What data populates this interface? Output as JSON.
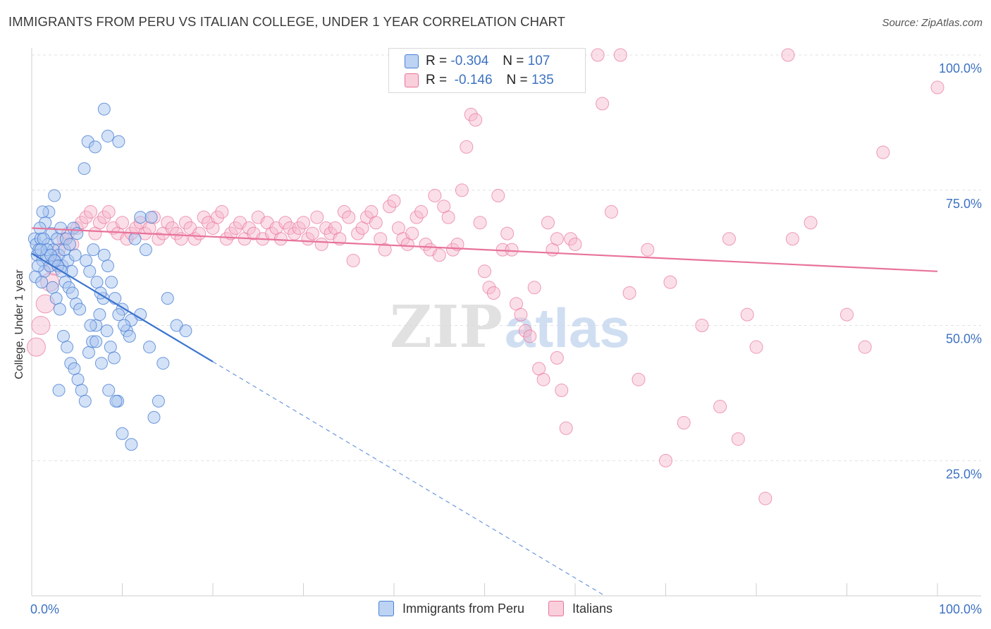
{
  "title": "IMMIGRANTS FROM PERU VS ITALIAN COLLEGE, UNDER 1 YEAR CORRELATION CHART",
  "source": "Source: ZipAtlas.com",
  "watermark": "ZIPatlas",
  "colors": {
    "blue": "#4a7fd4",
    "blue_fill": "#a9c6ef",
    "pink": "#e8739a",
    "pink_fill": "#f6b8cc",
    "tick_label": "#3d72c2"
  },
  "legend": {
    "rows": [
      {
        "r_label": "R =",
        "r_value": "-0.304",
        "n_label": "N =",
        "n_value": "107"
      },
      {
        "r_label": "R =",
        "r_value": "-0.146",
        "n_label": "N =",
        "n_value": "135"
      }
    ]
  },
  "bottom_legend": [
    "Immigrants from Peru",
    "Italians"
  ],
  "chart_data": {
    "type": "scatter",
    "title": "IMMIGRANTS FROM PERU VS ITALIAN COLLEGE, UNDER 1 YEAR CORRELATION CHART",
    "xlabel": "",
    "ylabel": "College, Under 1 year",
    "xlim": [
      0,
      100
    ],
    "ylim": [
      0,
      100
    ],
    "x_tick_labels": [
      "0.0%",
      "100.0%"
    ],
    "y_tick_labels": [
      "100.0%",
      "75.0%",
      "50.0%",
      "25.0%"
    ],
    "y_ticks": [
      100,
      75,
      50,
      25
    ],
    "grid": true,
    "legend_position": "top-center",
    "series": [
      {
        "name": "Immigrants from Peru",
        "R": -0.304,
        "N": 107,
        "trend": {
          "x": [
            0,
            20
          ],
          "y": [
            63.3,
            43.3
          ],
          "dashed_x": [
            20,
            63.3
          ],
          "dashed_y": [
            43.3,
            0
          ]
        },
        "points": [
          [
            0.3,
            66
          ],
          [
            0.5,
            65
          ],
          [
            0.6,
            63
          ],
          [
            0.8,
            64
          ],
          [
            1.0,
            66
          ],
          [
            1.2,
            62
          ],
          [
            1.4,
            60
          ],
          [
            1.6,
            63
          ],
          [
            1.8,
            65
          ],
          [
            2.0,
            61
          ],
          [
            2.2,
            67
          ],
          [
            2.4,
            64
          ],
          [
            2.6,
            62
          ],
          [
            2.8,
            66
          ],
          [
            3.0,
            63
          ],
          [
            3.2,
            68
          ],
          [
            3.4,
            61
          ],
          [
            3.6,
            64
          ],
          [
            3.8,
            66
          ],
          [
            4.0,
            62
          ],
          [
            4.2,
            65
          ],
          [
            4.4,
            60
          ],
          [
            4.6,
            68
          ],
          [
            4.8,
            63
          ],
          [
            5.0,
            67
          ],
          [
            0.4,
            59
          ],
          [
            0.7,
            61
          ],
          [
            1.1,
            58
          ],
          [
            1.5,
            69
          ],
          [
            1.9,
            71
          ],
          [
            2.3,
            57
          ],
          [
            2.7,
            55
          ],
          [
            3.1,
            53
          ],
          [
            3.5,
            48
          ],
          [
            3.9,
            46
          ],
          [
            4.3,
            43
          ],
          [
            4.7,
            42
          ],
          [
            5.1,
            40
          ],
          [
            5.5,
            38
          ],
          [
            5.9,
            36
          ],
          [
            6.3,
            45
          ],
          [
            6.7,
            47
          ],
          [
            7.1,
            50
          ],
          [
            7.5,
            52
          ],
          [
            7.9,
            55
          ],
          [
            8.3,
            49
          ],
          [
            8.7,
            46
          ],
          [
            9.1,
            44
          ],
          [
            9.5,
            36
          ],
          [
            10.0,
            53
          ],
          [
            10.5,
            49
          ],
          [
            11.0,
            51
          ],
          [
            12.0,
            52
          ],
          [
            13.0,
            46
          ],
          [
            14.0,
            36
          ],
          [
            15.0,
            55
          ],
          [
            16.0,
            50
          ],
          [
            17.0,
            49
          ],
          [
            6.0,
            62
          ],
          [
            6.4,
            60
          ],
          [
            6.8,
            64
          ],
          [
            7.2,
            58
          ],
          [
            7.6,
            56
          ],
          [
            8.0,
            63
          ],
          [
            8.4,
            61
          ],
          [
            8.8,
            58
          ],
          [
            9.2,
            55
          ],
          [
            9.6,
            52
          ],
          [
            10.2,
            50
          ],
          [
            10.8,
            48
          ],
          [
            11.4,
            66
          ],
          [
            12.0,
            70
          ],
          [
            12.6,
            64
          ],
          [
            13.2,
            70
          ],
          [
            5.8,
            79
          ],
          [
            6.2,
            84
          ],
          [
            7.0,
            83
          ],
          [
            8.0,
            90
          ],
          [
            8.4,
            85
          ],
          [
            9.6,
            84
          ],
          [
            2.5,
            74
          ],
          [
            1.2,
            71
          ],
          [
            0.9,
            68
          ],
          [
            1.3,
            66
          ],
          [
            1.7,
            64
          ],
          [
            2.1,
            63
          ],
          [
            2.5,
            62
          ],
          [
            2.9,
            61
          ],
          [
            3.3,
            60
          ],
          [
            3.7,
            58
          ],
          [
            4.1,
            57
          ],
          [
            4.5,
            56
          ],
          [
            4.9,
            54
          ],
          [
            5.3,
            53
          ],
          [
            6.5,
            50
          ],
          [
            7.1,
            47
          ],
          [
            7.7,
            43
          ],
          [
            8.5,
            38
          ],
          [
            9.3,
            36
          ],
          [
            10.0,
            30
          ],
          [
            11.0,
            28
          ],
          [
            13.5,
            33
          ],
          [
            14.5,
            43
          ],
          [
            3.0,
            38
          ],
          [
            1.0,
            64
          ]
        ]
      },
      {
        "name": "Italians",
        "R": -0.146,
        "N": 135,
        "trend": {
          "x": [
            0,
            100
          ],
          "y": [
            68,
            60
          ]
        },
        "points": [
          [
            0.5,
            46
          ],
          [
            1.0,
            50
          ],
          [
            1.5,
            54
          ],
          [
            2.0,
            58
          ],
          [
            2.5,
            61
          ],
          [
            3.0,
            64
          ],
          [
            3.5,
            66
          ],
          [
            4.0,
            67
          ],
          [
            4.5,
            65
          ],
          [
            5.0,
            68
          ],
          [
            5.5,
            69
          ],
          [
            6.0,
            70
          ],
          [
            6.5,
            71
          ],
          [
            7.0,
            67
          ],
          [
            7.5,
            69
          ],
          [
            8.0,
            70
          ],
          [
            8.5,
            71
          ],
          [
            9.0,
            68
          ],
          [
            9.5,
            67
          ],
          [
            10.0,
            69
          ],
          [
            10.5,
            66
          ],
          [
            11.0,
            67
          ],
          [
            11.5,
            68
          ],
          [
            12.0,
            69
          ],
          [
            12.5,
            67
          ],
          [
            13.0,
            68
          ],
          [
            13.5,
            70
          ],
          [
            14.0,
            66
          ],
          [
            14.5,
            67
          ],
          [
            15.0,
            69
          ],
          [
            15.5,
            68
          ],
          [
            16.0,
            67
          ],
          [
            16.5,
            66
          ],
          [
            17.0,
            69
          ],
          [
            17.5,
            68
          ],
          [
            18.0,
            66
          ],
          [
            18.5,
            67
          ],
          [
            19.0,
            70
          ],
          [
            19.5,
            69
          ],
          [
            20.0,
            68
          ],
          [
            20.5,
            70
          ],
          [
            21.0,
            71
          ],
          [
            21.5,
            66
          ],
          [
            22.0,
            67
          ],
          [
            22.5,
            68
          ],
          [
            23.0,
            69
          ],
          [
            23.5,
            66
          ],
          [
            24.0,
            68
          ],
          [
            24.5,
            67
          ],
          [
            25.0,
            70
          ],
          [
            25.5,
            66
          ],
          [
            26.0,
            69
          ],
          [
            26.5,
            67
          ],
          [
            27.0,
            68
          ],
          [
            27.5,
            66
          ],
          [
            28.0,
            69
          ],
          [
            28.5,
            68
          ],
          [
            29.0,
            67
          ],
          [
            29.5,
            68
          ],
          [
            30.0,
            69
          ],
          [
            30.5,
            66
          ],
          [
            31.0,
            67
          ],
          [
            31.5,
            70
          ],
          [
            32.0,
            65
          ],
          [
            32.5,
            68
          ],
          [
            33.0,
            67
          ],
          [
            33.5,
            68
          ],
          [
            34.0,
            66
          ],
          [
            34.5,
            71
          ],
          [
            35.0,
            70
          ],
          [
            35.5,
            62
          ],
          [
            36.0,
            67
          ],
          [
            36.5,
            68
          ],
          [
            37.0,
            70
          ],
          [
            37.5,
            71
          ],
          [
            38.0,
            69
          ],
          [
            38.5,
            66
          ],
          [
            39.0,
            64
          ],
          [
            39.5,
            72
          ],
          [
            40.0,
            73
          ],
          [
            40.5,
            68
          ],
          [
            41.0,
            66
          ],
          [
            41.5,
            65
          ],
          [
            42.0,
            67
          ],
          [
            42.5,
            70
          ],
          [
            43.0,
            71
          ],
          [
            43.5,
            65
          ],
          [
            44.0,
            64
          ],
          [
            44.5,
            74
          ],
          [
            45.0,
            63
          ],
          [
            45.5,
            72
          ],
          [
            46.0,
            70
          ],
          [
            46.5,
            64
          ],
          [
            47.0,
            65
          ],
          [
            47.5,
            75
          ],
          [
            48.0,
            83
          ],
          [
            48.5,
            89
          ],
          [
            49.0,
            88
          ],
          [
            49.5,
            69
          ],
          [
            50.0,
            60
          ],
          [
            50.5,
            57
          ],
          [
            51.0,
            56
          ],
          [
            51.5,
            74
          ],
          [
            52.0,
            64
          ],
          [
            52.5,
            67
          ],
          [
            53.0,
            64
          ],
          [
            53.5,
            54
          ],
          [
            54.0,
            52
          ],
          [
            54.5,
            49
          ],
          [
            55.0,
            48
          ],
          [
            55.5,
            57
          ],
          [
            56.0,
            42
          ],
          [
            56.5,
            40
          ],
          [
            57.0,
            69
          ],
          [
            57.5,
            64
          ],
          [
            58.0,
            44
          ],
          [
            58.5,
            38
          ],
          [
            59.0,
            31
          ],
          [
            59.5,
            66
          ],
          [
            60.0,
            100
          ],
          [
            62.5,
            100
          ],
          [
            63.0,
            91
          ],
          [
            64.0,
            71
          ],
          [
            65.0,
            100
          ],
          [
            66.0,
            56
          ],
          [
            67.0,
            40
          ],
          [
            68.0,
            64
          ],
          [
            70.0,
            25
          ],
          [
            70.5,
            58
          ],
          [
            72.0,
            32
          ],
          [
            74.0,
            50
          ],
          [
            76.0,
            35
          ],
          [
            77.0,
            66
          ],
          [
            78.0,
            29
          ],
          [
            79.0,
            52
          ],
          [
            80.0,
            46
          ],
          [
            81.0,
            18
          ],
          [
            83.5,
            100
          ],
          [
            84.0,
            66
          ],
          [
            86.0,
            69
          ],
          [
            90.0,
            52
          ],
          [
            92.0,
            46
          ],
          [
            94.0,
            82
          ],
          [
            100.0,
            94
          ],
          [
            60.0,
            65
          ],
          [
            58.0,
            66
          ]
        ]
      }
    ]
  }
}
